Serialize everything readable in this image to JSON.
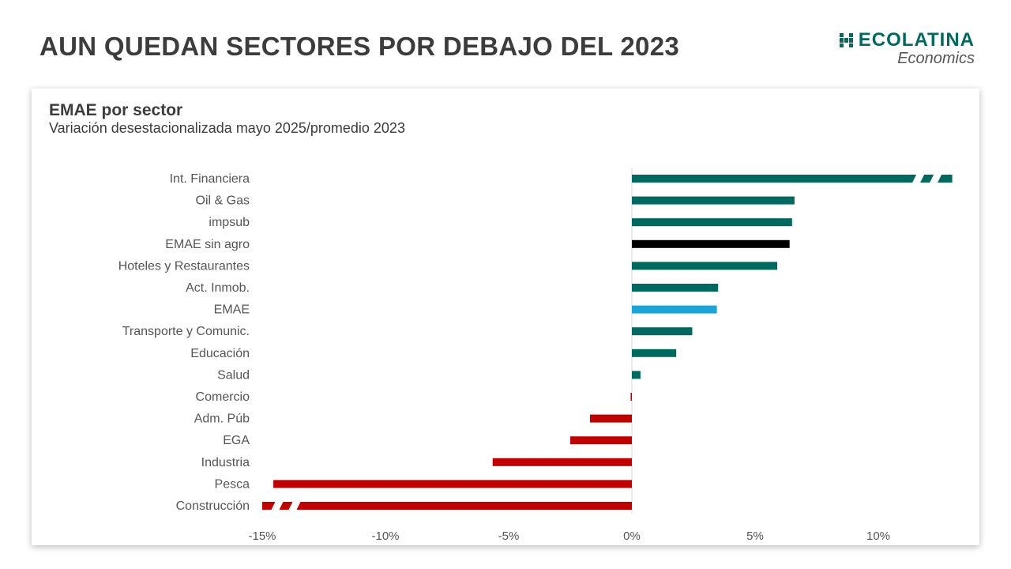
{
  "header": {
    "title": "AUN QUEDAN SECTORES POR DEBAJO DEL 2023",
    "logo_name": "ECOLATINA",
    "logo_sub": "Economics"
  },
  "chart_data": {
    "type": "bar",
    "orientation": "horizontal",
    "title": "EMAE por sector",
    "subtitle": "Variación desestacionalizada mayo 2025/promedio 2023",
    "categories": [
      "Int. Financiera",
      "Oil & Gas",
      "impsub",
      "EMAE sin agro",
      "Hoteles y Restaurantes",
      "Act. Inmob.",
      "EMAE",
      "Transporte y Comunic.",
      "Educación",
      "Salud",
      "Comercio",
      "Adm. Púb",
      "EGA",
      "Industria",
      "Pesca",
      "Construcción"
    ],
    "values": [
      13.0,
      6.6,
      6.5,
      6.4,
      5.9,
      3.5,
      3.45,
      2.45,
      1.8,
      0.35,
      -0.05,
      -1.7,
      -2.5,
      -5.65,
      -14.55,
      -15.0
    ],
    "broken_bars": [
      "Int. Financiera",
      "Construcción"
    ],
    "colors": {
      "positive": "#00695f",
      "negative": "#c00000",
      "EMAE sin agro": "#000000",
      "EMAE": "#1aa3d9"
    },
    "xlim": [
      -15,
      13
    ],
    "xticks": [
      -15,
      -10,
      -5,
      0,
      5,
      10
    ],
    "xtick_labels": [
      "-15%",
      "-10%",
      "-5%",
      "0%",
      "5%",
      "10%"
    ],
    "legend": "none",
    "grid": false
  }
}
